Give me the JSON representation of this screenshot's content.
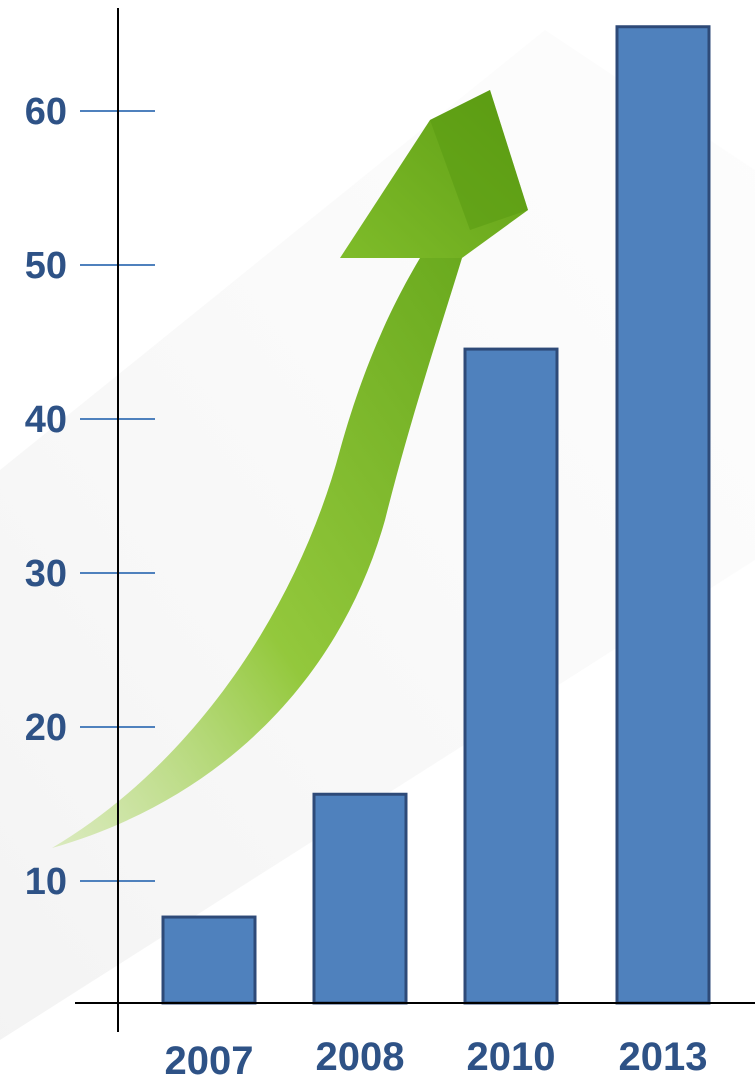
{
  "chart_data": {
    "type": "bar",
    "title": "",
    "xlabel": "",
    "ylabel": "",
    "categories": [
      "2007",
      "2008",
      "2010",
      "2013"
    ],
    "values": [
      3,
      11,
      40,
      61
    ],
    "yticks": [
      10,
      20,
      30,
      40,
      50,
      60
    ],
    "ylim": [
      -2,
      65
    ],
    "grid": false,
    "legend": "none",
    "bar_color": "#4f81bd",
    "bar_edge_color": "#2e4a78",
    "label_color": "#2e5286",
    "tick_color": "#4f81bd",
    "axis_color": "#000000",
    "decoration": "green-upward-arrow",
    "arrow_color": "#7ab828"
  }
}
